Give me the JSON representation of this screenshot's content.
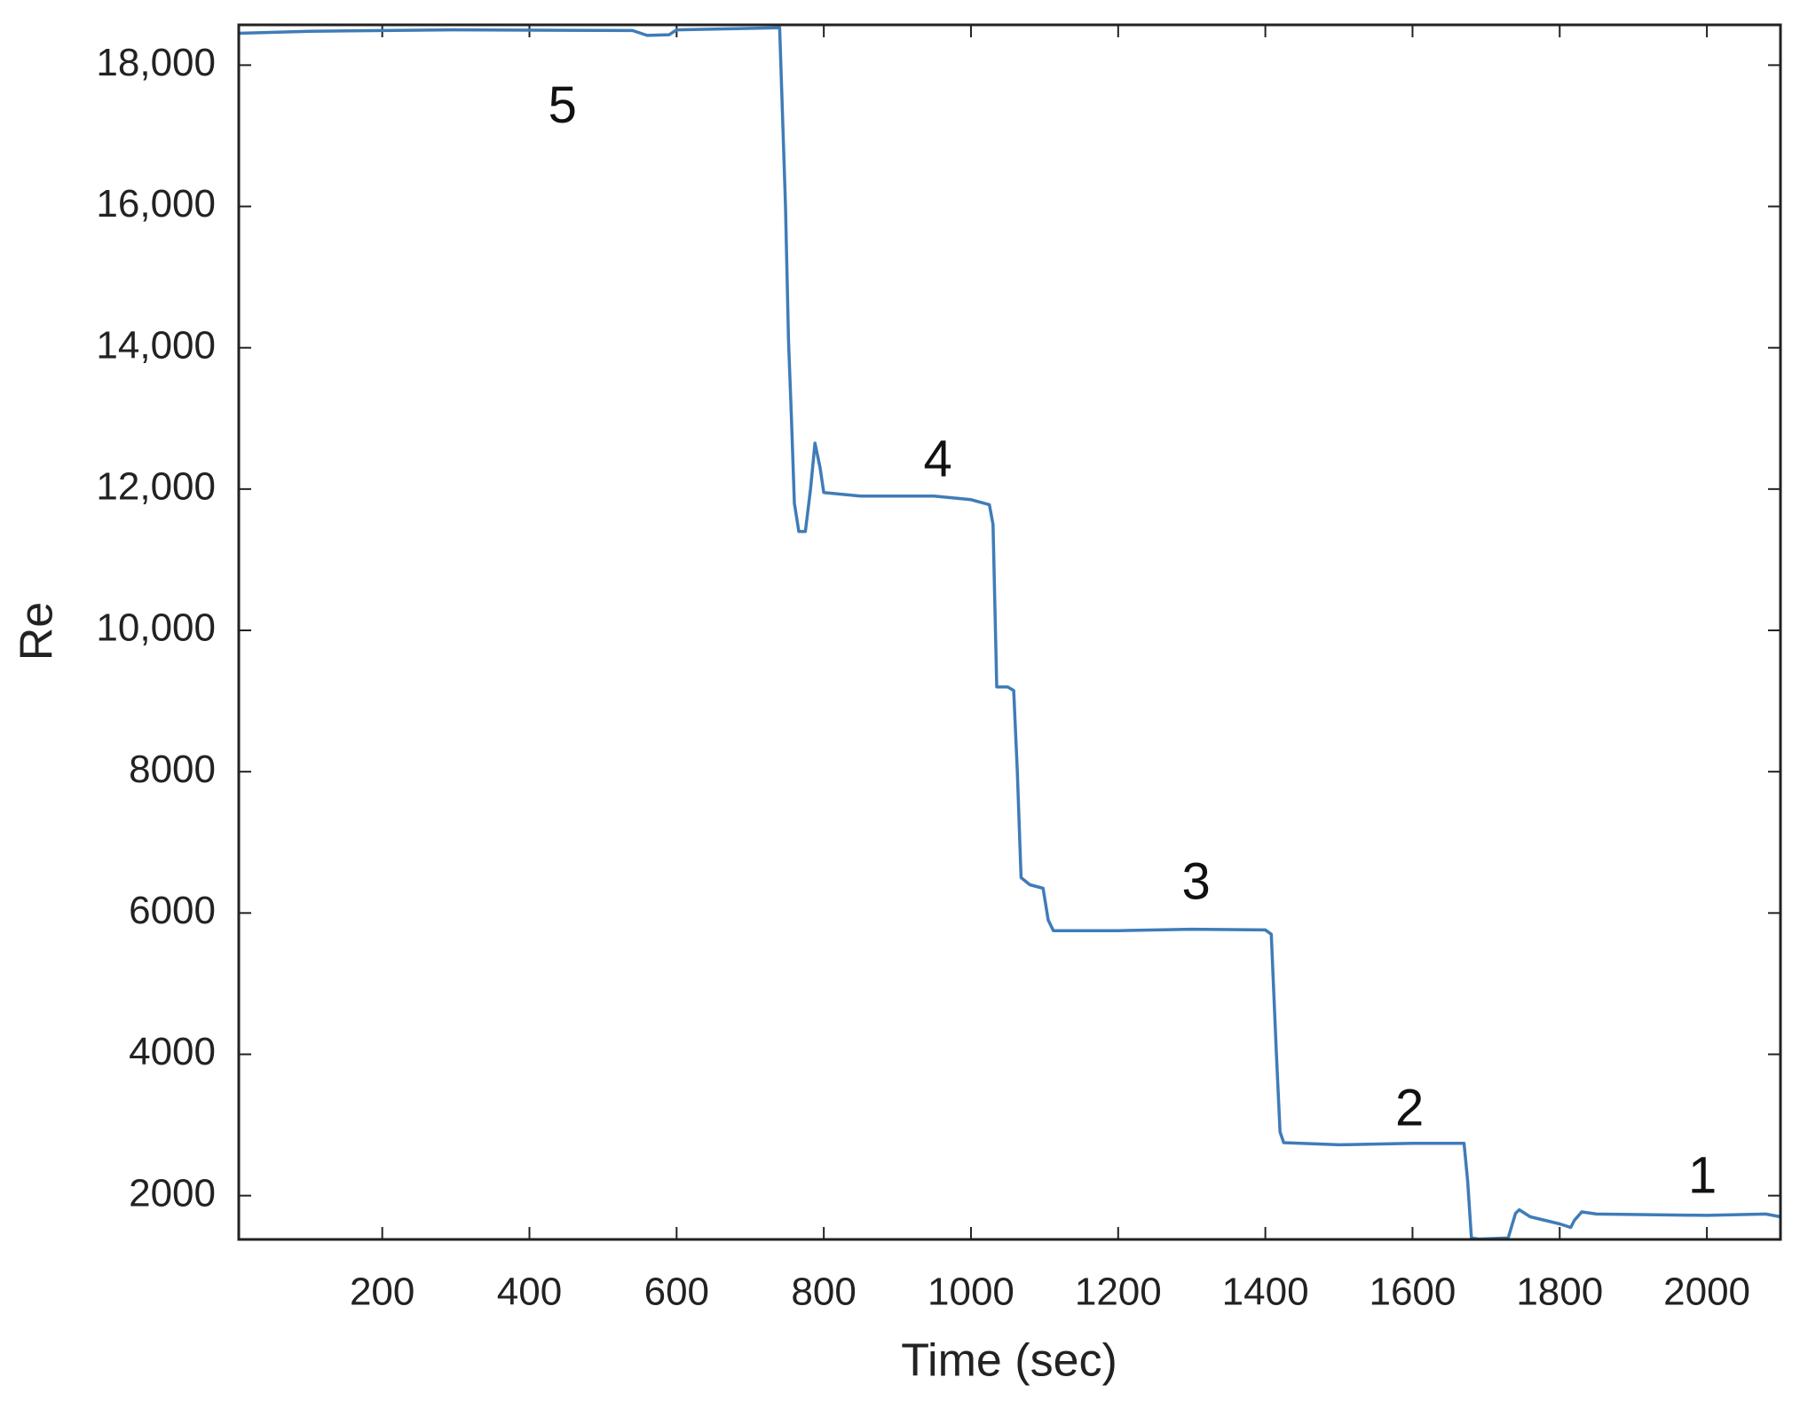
{
  "chart_data": {
    "type": "line",
    "xlabel": "Time (sec)",
    "ylabel": "Re",
    "color": "#3f7cb8",
    "x": [
      5,
      100,
      300,
      540,
      560,
      590,
      600,
      740,
      748,
      752,
      756,
      760,
      766,
      775,
      782,
      788,
      795,
      800,
      850,
      950,
      1000,
      1025,
      1030,
      1035,
      1050,
      1058,
      1063,
      1068,
      1080,
      1098,
      1105,
      1112,
      1200,
      1300,
      1400,
      1408,
      1415,
      1420,
      1425,
      1500,
      1600,
      1670,
      1675,
      1680,
      1690,
      1730,
      1740,
      1745,
      1760,
      1800,
      1815,
      1820,
      1830,
      1850,
      2000,
      2080,
      2100
    ],
    "values": [
      18450,
      18480,
      18500,
      18490,
      18420,
      18430,
      18500,
      18530,
      16000,
      14100,
      13000,
      11800,
      11400,
      11400,
      12000,
      12650,
      12300,
      11950,
      11900,
      11900,
      11850,
      11780,
      11500,
      9200,
      9200,
      9150,
      8000,
      6500,
      6400,
      6350,
      5900,
      5750,
      5750,
      5770,
      5760,
      5700,
      4000,
      2900,
      2750,
      2720,
      2740,
      2740,
      2200,
      1400,
      1385,
      1400,
      1750,
      1800,
      1700,
      1600,
      1550,
      1650,
      1770,
      1740,
      1720,
      1740,
      1700
    ],
    "xlim": [
      5,
      2100
    ],
    "ylim": [
      1380,
      18570
    ],
    "xticks": [
      200,
      400,
      600,
      800,
      1000,
      1200,
      1400,
      1600,
      1800,
      2000
    ],
    "yticks": [
      2000,
      4000,
      6000,
      8000,
      {
        "value": 10000,
        "label": "10,000"
      },
      {
        "value": 12000,
        "label": "12,000"
      },
      {
        "value": 14000,
        "label": "14,000"
      },
      {
        "value": 16000,
        "label": "16,000"
      },
      {
        "value": 18000,
        "label": "18,000"
      }
    ],
    "grid": false,
    "annotations": [
      {
        "text": "5",
        "x": 445,
        "y": 17380
      },
      {
        "text": "4",
        "x": 955,
        "y": 12370
      },
      {
        "text": "3",
        "x": 1306,
        "y": 6390
      },
      {
        "text": "2",
        "x": 1596,
        "y": 3190
      },
      {
        "text": "1",
        "x": 1994,
        "y": 2230
      }
    ]
  }
}
